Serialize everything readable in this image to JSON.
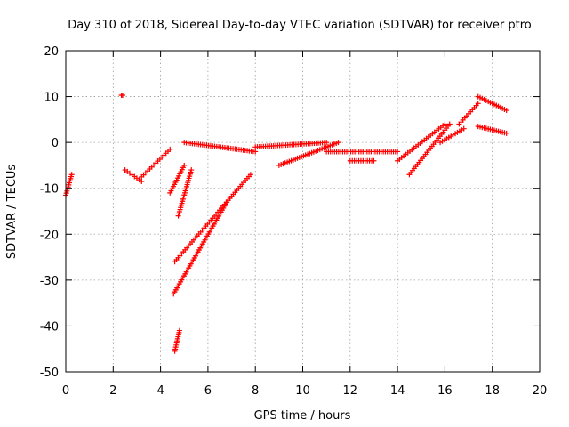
{
  "chart_data": {
    "type": "scatter",
    "title": "Day 310 of 2018, Sidereal Day-to-day VTEC variation (SDTVAR) for receiver ptro",
    "xlabel": "GPS time / hours",
    "ylabel": "SDTVAR / TECUs",
    "xlim": [
      0,
      20
    ],
    "ylim": [
      -50,
      20
    ],
    "xticks": [
      0,
      2,
      4,
      6,
      8,
      10,
      12,
      14,
      16,
      18,
      20
    ],
    "yticks": [
      -50,
      -40,
      -30,
      -20,
      -10,
      0,
      10,
      20
    ],
    "grid": true,
    "marker": "+",
    "color": "#ff0000",
    "series": [
      {
        "name": "SDTVAR",
        "segments": [
          {
            "x": [
              0.0,
              0.25
            ],
            "y": [
              -11.5,
              -7.0
            ]
          },
          {
            "x": [
              2.35,
              2.4
            ],
            "y": [
              10.3,
              10.3
            ]
          },
          {
            "x": [
              2.5,
              3.2
            ],
            "y": [
              -6.0,
              -8.5
            ]
          },
          {
            "x": [
              3.2,
              4.4
            ],
            "y": [
              -7.5,
              -1.5
            ]
          },
          {
            "x": [
              4.4,
              5.0
            ],
            "y": [
              -11.0,
              -5.0
            ]
          },
          {
            "x": [
              4.75,
              5.3
            ],
            "y": [
              -16.0,
              -6.0
            ]
          },
          {
            "x": [
              5.0,
              8.0
            ],
            "y": [
              0.0,
              -2.0
            ]
          },
          {
            "x": [
              8.0,
              11.0
            ],
            "y": [
              -1.0,
              0.0
            ]
          },
          {
            "x": [
              9.0,
              11.5
            ],
            "y": [
              -5.0,
              0.0
            ]
          },
          {
            "x": [
              11.0,
              14.0
            ],
            "y": [
              -2.0,
              -2.0
            ]
          },
          {
            "x": [
              12.0,
              13.0
            ],
            "y": [
              -4.0,
              -4.0
            ]
          },
          {
            "x": [
              14.0,
              16.0
            ],
            "y": [
              -4.0,
              4.0
            ]
          },
          {
            "x": [
              14.5,
              16.2
            ],
            "y": [
              -7.0,
              4.0
            ]
          },
          {
            "x": [
              15.8,
              16.8
            ],
            "y": [
              0.0,
              3.0
            ]
          },
          {
            "x": [
              16.6,
              17.4
            ],
            "y": [
              4.0,
              8.5
            ]
          },
          {
            "x": [
              17.4,
              18.6
            ],
            "y": [
              10.0,
              7.0
            ]
          },
          {
            "x": [
              17.4,
              18.6
            ],
            "y": [
              3.5,
              2.0
            ]
          },
          {
            "x": [
              4.6,
              7.8
            ],
            "y": [
              -26.0,
              -7.0
            ]
          },
          {
            "x": [
              4.55,
              6.8
            ],
            "y": [
              -33.0,
              -13.0
            ]
          },
          {
            "x": [
              4.6,
              4.8
            ],
            "y": [
              -45.5,
              -41.0
            ]
          }
        ]
      }
    ]
  }
}
